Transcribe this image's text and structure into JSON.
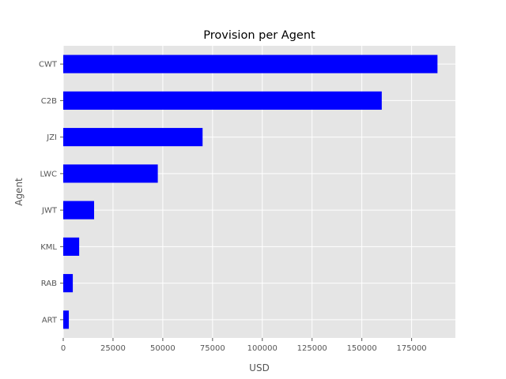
{
  "chart_data": {
    "type": "bar",
    "orientation": "horizontal",
    "title": "Provision per Agent",
    "xlabel": "USD",
    "ylabel": "Agent",
    "categories": [
      "CWT",
      "C2B",
      "JZI",
      "LWC",
      "JWT",
      "KML",
      "RAB",
      "ART"
    ],
    "values": [
      188000,
      160000,
      70000,
      47500,
      15500,
      8000,
      4800,
      2800
    ],
    "xlim": [
      0,
      197000
    ],
    "xticks": [
      0,
      25000,
      50000,
      75000,
      100000,
      125000,
      150000,
      175000
    ],
    "grid": true,
    "legend": "none",
    "colors": {
      "bar": "#0000ff",
      "plot_bg": "#e5e5e5",
      "grid": "#ffffff",
      "text": "#555555"
    }
  }
}
